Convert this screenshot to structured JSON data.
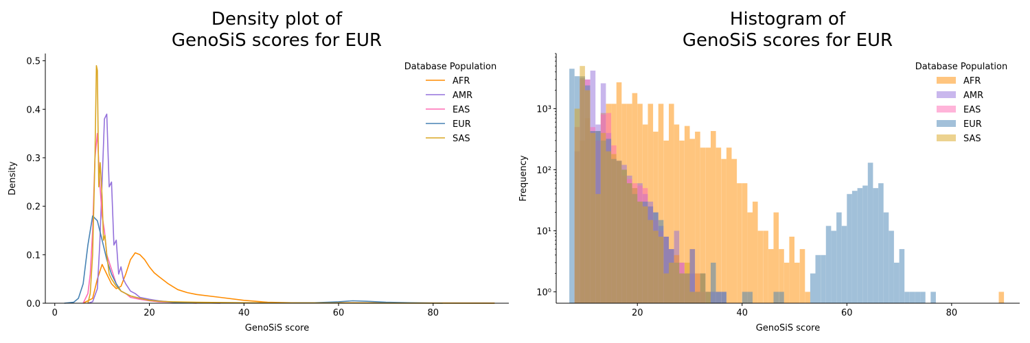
{
  "chart_data": [
    {
      "type": "line",
      "title": "Density plot of\nGenoSiS scores for EUR",
      "xlabel": "GenoSiS score",
      "ylabel": "Density",
      "xlim": [
        -2,
        96
      ],
      "ylim": [
        0,
        0.515
      ],
      "xticks": [
        0,
        20,
        40,
        60,
        80
      ],
      "yticks": [
        0.0,
        0.1,
        0.2,
        0.3,
        0.4,
        0.5
      ],
      "legend_title": "Database Population",
      "legend_position": "top-right",
      "grid": false,
      "series": [
        {
          "name": "AFR",
          "color": "#ff8c00",
          "x": [
            6,
            8,
            9,
            10,
            11,
            12,
            13,
            14,
            15,
            16,
            17,
            18,
            19,
            20,
            21,
            22,
            24,
            26,
            28,
            30,
            35,
            40,
            45,
            50,
            60,
            70,
            80,
            93
          ],
          "y": [
            0,
            0.01,
            0.05,
            0.08,
            0.06,
            0.04,
            0.03,
            0.035,
            0.06,
            0.09,
            0.104,
            0.1,
            0.09,
            0.075,
            0.063,
            0.055,
            0.04,
            0.028,
            0.022,
            0.018,
            0.012,
            0.006,
            0.002,
            0.001,
            0.0008,
            0.0005,
            0.0004,
            0.0003
          ]
        },
        {
          "name": "AMR",
          "color": "#9370db",
          "x": [
            7,
            8,
            9,
            9.5,
            10,
            10.5,
            11,
            11.5,
            12,
            12.5,
            13,
            13.5,
            14,
            14.5,
            15,
            16,
            17,
            18,
            20,
            22,
            25,
            30,
            35
          ],
          "y": [
            0,
            0.003,
            0.03,
            0.12,
            0.25,
            0.38,
            0.39,
            0.24,
            0.25,
            0.12,
            0.13,
            0.06,
            0.075,
            0.05,
            0.04,
            0.025,
            0.02,
            0.012,
            0.008,
            0.005,
            0.002,
            0.001,
            0
          ]
        },
        {
          "name": "EAS",
          "color": "#ff69b4",
          "x": [
            6,
            7,
            7.5,
            8,
            8.5,
            9,
            9.5,
            10,
            10.5,
            11,
            12,
            13,
            14,
            15,
            16,
            18,
            20,
            22,
            25,
            30
          ],
          "y": [
            0,
            0.02,
            0.06,
            0.15,
            0.3,
            0.35,
            0.25,
            0.18,
            0.15,
            0.1,
            0.07,
            0.04,
            0.025,
            0.02,
            0.012,
            0.008,
            0.005,
            0.003,
            0.002,
            0
          ]
        },
        {
          "name": "EUR",
          "color": "#4682b4",
          "x": [
            2,
            4,
            5,
            6,
            7,
            8,
            9,
            10,
            11,
            12,
            13,
            14,
            16,
            18,
            20,
            25,
            30,
            40,
            50,
            55,
            60,
            63,
            66,
            70,
            75,
            82
          ],
          "y": [
            0,
            0.002,
            0.01,
            0.04,
            0.12,
            0.18,
            0.17,
            0.13,
            0.09,
            0.06,
            0.04,
            0.025,
            0.015,
            0.01,
            0.006,
            0.002,
            0.001,
            0.0005,
            0.0005,
            0.001,
            0.003,
            0.005,
            0.004,
            0.002,
            0.001,
            0
          ]
        },
        {
          "name": "SAS",
          "color": "#daa520",
          "x": [
            7,
            7.5,
            8,
            8.5,
            8.8,
            9,
            9.3,
            9.6,
            10,
            10.3,
            10.6,
            11,
            11.5,
            12,
            13,
            14,
            15,
            16,
            18,
            20,
            22,
            25,
            30,
            40,
            50,
            70,
            93
          ],
          "y": [
            0,
            0.02,
            0.1,
            0.3,
            0.49,
            0.48,
            0.24,
            0.29,
            0.22,
            0.13,
            0.14,
            0.1,
            0.06,
            0.05,
            0.035,
            0.025,
            0.02,
            0.015,
            0.01,
            0.006,
            0.004,
            0.003,
            0.002,
            0.001,
            0.0005,
            0.0003,
            0
          ]
        }
      ]
    },
    {
      "type": "bar",
      "title": "Histogram of\nGenoSiS scores for EUR",
      "xlabel": "GenoSiS score",
      "ylabel": "Frequency",
      "yscale": "log",
      "xlim": [
        4.5,
        93
      ],
      "ylim": [
        0.65,
        8000
      ],
      "xticks": [
        20,
        40,
        60,
        80
      ],
      "yticks": [
        1,
        10,
        100,
        1000
      ],
      "ytick_labels": [
        "10⁰",
        "10¹",
        "10²",
        "10³"
      ],
      "legend_title": "Database Population",
      "legend_position": "top-right",
      "grid": false,
      "bin_width": 1,
      "series": [
        {
          "name": "AFR",
          "color": "#ff8c00",
          "opacity": 0.5,
          "x": [
            9,
            10,
            11,
            12,
            13,
            14,
            15,
            16,
            17,
            18,
            19,
            20,
            21,
            22,
            23,
            24,
            25,
            26,
            27,
            28,
            29,
            30,
            31,
            32,
            33,
            34,
            35,
            36,
            37,
            38,
            39,
            40,
            41,
            42,
            43,
            44,
            45,
            46,
            47,
            48,
            49,
            50,
            51,
            52,
            89
          ],
          "y": [
            300,
            700,
            430,
            430,
            850,
            1200,
            1200,
            2700,
            1200,
            1200,
            1800,
            1200,
            550,
            1200,
            420,
            1200,
            300,
            1200,
            550,
            300,
            520,
            320,
            420,
            230,
            230,
            430,
            230,
            150,
            230,
            150,
            60,
            60,
            20,
            30,
            10,
            10,
            5,
            20,
            5,
            3,
            8,
            3,
            5,
            1,
            1
          ]
        },
        {
          "name": "AMR",
          "color": "#9370db",
          "opacity": 0.5,
          "x": [
            8,
            9,
            10,
            11,
            12,
            13,
            14,
            15,
            16,
            17,
            18,
            19,
            20,
            21,
            22,
            23,
            24,
            25,
            26,
            27,
            28,
            29,
            30,
            31,
            32,
            33,
            34,
            35,
            36
          ],
          "y": [
            200,
            3200,
            3000,
            4200,
            550,
            2600,
            400,
            150,
            140,
            120,
            80,
            50,
            60,
            40,
            30,
            20,
            12,
            8,
            5,
            10,
            3,
            2,
            2,
            1,
            2,
            1,
            1,
            1,
            1
          ]
        },
        {
          "name": "EAS",
          "color": "#ff69b4",
          "opacity": 0.5,
          "x": [
            8,
            9,
            10,
            11,
            12,
            13,
            14,
            15,
            16,
            17,
            18,
            19,
            20,
            21,
            22,
            23,
            24,
            25,
            26,
            27,
            28,
            29,
            30,
            31,
            32
          ],
          "y": [
            500,
            3000,
            3000,
            500,
            300,
            800,
            850,
            250,
            140,
            80,
            70,
            60,
            55,
            50,
            25,
            15,
            10,
            8,
            5,
            4,
            3,
            2,
            5,
            2,
            1
          ]
        },
        {
          "name": "EUR",
          "color": "#4682b4",
          "opacity": 0.5,
          "x": [
            7,
            8,
            9,
            10,
            11,
            12,
            13,
            14,
            15,
            16,
            17,
            18,
            19,
            20,
            21,
            22,
            23,
            24,
            25,
            26,
            27,
            28,
            29,
            30,
            31,
            32,
            33,
            34,
            35,
            36,
            37,
            38,
            39,
            40,
            41,
            42,
            43,
            44,
            45,
            46,
            47,
            48,
            49,
            50,
            51,
            52,
            53,
            54,
            55,
            56,
            57,
            58,
            59,
            60,
            61,
            62,
            63,
            64,
            65,
            66,
            67,
            68,
            69,
            70,
            71,
            72,
            73,
            74,
            75,
            76,
            77
          ],
          "y": [
            4500,
            3400,
            3400,
            2400,
            430,
            430,
            300,
            320,
            150,
            140,
            100,
            60,
            40,
            30,
            30,
            25,
            20,
            15,
            8,
            5,
            3,
            2,
            2,
            5,
            1,
            2,
            1,
            3,
            1,
            1,
            0,
            0,
            0,
            1,
            1,
            0,
            0,
            0,
            0,
            1,
            1,
            0,
            0,
            0,
            0,
            0,
            2,
            4,
            4,
            12,
            10,
            20,
            12,
            40,
            45,
            50,
            55,
            130,
            50,
            60,
            20,
            10,
            3,
            5,
            1,
            1,
            1,
            1,
            0,
            1,
            0
          ]
        },
        {
          "name": "SAS",
          "color": "#daa520",
          "opacity": 0.5,
          "x": [
            8,
            9,
            10,
            11,
            12,
            13,
            14,
            15,
            16,
            17,
            18,
            19,
            20,
            21,
            22,
            23,
            24,
            25,
            26,
            27,
            28,
            29,
            30,
            31,
            32,
            33
          ],
          "y": [
            1000,
            5000,
            2000,
            400,
            40,
            400,
            200,
            180,
            140,
            100,
            60,
            50,
            30,
            25,
            15,
            10,
            8,
            2,
            3,
            4,
            2,
            3,
            1,
            2,
            2,
            1
          ]
        }
      ]
    }
  ]
}
